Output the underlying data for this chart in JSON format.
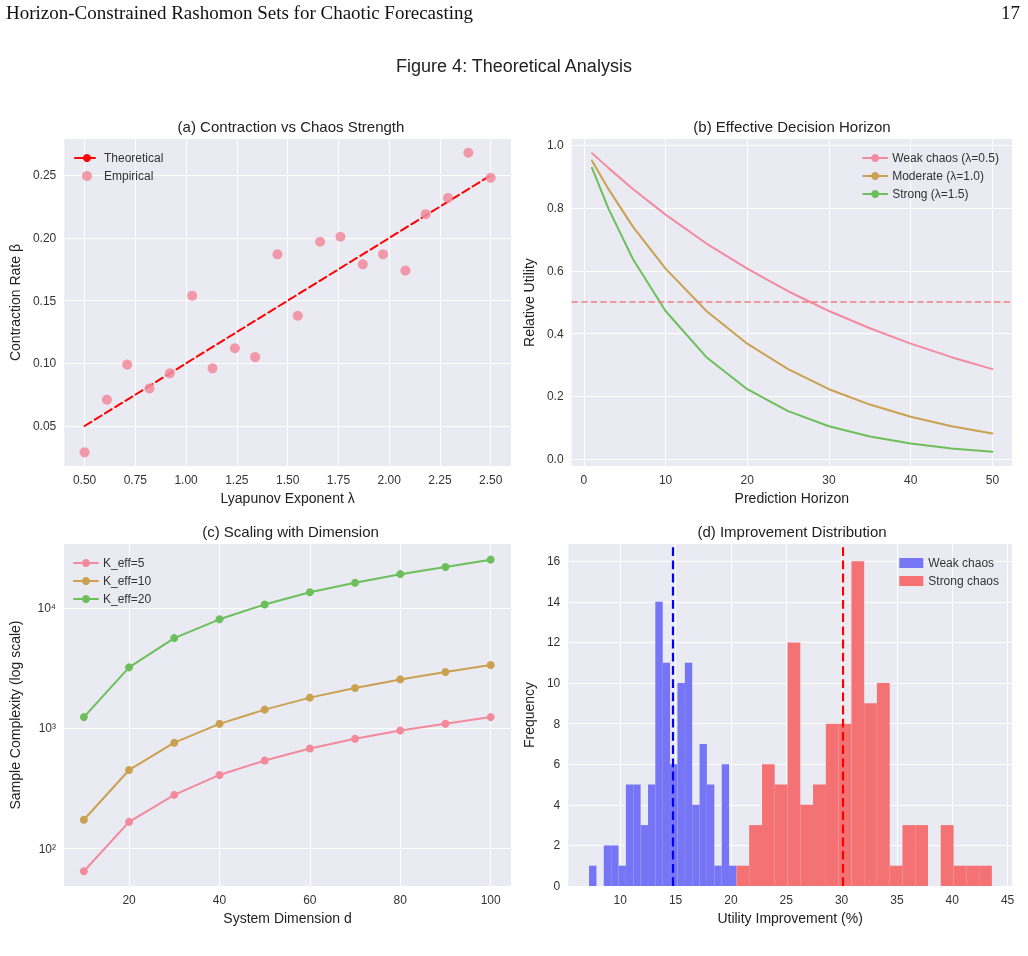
{
  "chart_data": [
    {
      "type": "scatter",
      "title": "(a) Contraction vs Chaos Strength",
      "xlabel": "Lyapunov Exponent λ",
      "ylabel": "Contraction Rate β",
      "annotations": [
        "Horizon-Constrained Rashomon Sets for Chaotic Forecasting",
        "17",
        "Figure 4: Theoretical Analysis"
      ],
      "series": [
        {
          "type": "line",
          "name": "Theoretical",
          "color": "#ff0000",
          "line_style": "dashed",
          "marker": "none",
          "x": [
            0.5,
            2.5
          ],
          "values": [
            0.05,
            0.25
          ]
        },
        {
          "name": "Empirical",
          "color": "#f28a9c",
          "marker": "circle",
          "x": [
            0.5,
            0.61,
            0.71,
            0.82,
            0.92,
            1.03,
            1.13,
            1.24,
            1.34,
            1.45,
            1.55,
            1.66,
            1.76,
            1.87,
            1.97,
            2.08,
            2.18,
            2.29,
            2.39,
            2.5
          ],
          "values": [
            0.029,
            0.071,
            0.099,
            0.08,
            0.092,
            0.154,
            0.096,
            0.112,
            0.105,
            0.187,
            0.138,
            0.197,
            0.201,
            0.179,
            0.187,
            0.174,
            0.219,
            0.232,
            0.268,
            0.248
          ]
        }
      ],
      "xlim": [
        0.4,
        2.6
      ],
      "xticks": [
        {
          "value": 0.5,
          "label": "0.50"
        },
        {
          "value": 0.75,
          "label": "0.75"
        },
        {
          "value": 1,
          "label": "1.00"
        },
        {
          "value": 1.25,
          "label": "1.25"
        },
        {
          "value": 1.5,
          "label": "1.50"
        },
        {
          "value": 1.75,
          "label": "1.75"
        },
        {
          "value": 2,
          "label": "2.00"
        },
        {
          "value": 2.25,
          "label": "2.25"
        },
        {
          "value": 2.5,
          "label": "2.50"
        }
      ],
      "ylim": [
        0.018,
        0.279
      ],
      "yticks": [
        {
          "value": 0.05,
          "label": "0.05"
        },
        {
          "value": 0.1,
          "label": "0.10"
        },
        {
          "value": 0.15,
          "label": "0.15"
        },
        {
          "value": 0.2,
          "label": "0.20"
        },
        {
          "value": 0.25,
          "label": "0.25"
        }
      ],
      "grid": true,
      "legend": "top left"
    },
    {
      "type": "line",
      "title": "(b) Effective Decision Horizon",
      "xlabel": "Prediction Horizon",
      "ylabel": "Relative Utility",
      "marker": "none",
      "x": [
        1,
        3,
        6,
        10,
        15,
        20,
        25,
        30,
        35,
        40,
        45,
        50
      ],
      "series": [
        {
          "name": "Weak chaos (λ=0.5)",
          "color": "#f38aa0",
          "values": [
            0.975,
            0.928,
            0.861,
            0.779,
            0.687,
            0.607,
            0.535,
            0.472,
            0.417,
            0.368,
            0.325,
            0.287
          ]
        },
        {
          "name": "Moderate (λ=1.0)",
          "color": "#c9a150",
          "values": [
            0.951,
            0.861,
            0.741,
            0.607,
            0.472,
            0.368,
            0.287,
            0.223,
            0.174,
            0.135,
            0.105,
            0.082
          ]
        },
        {
          "name": "Strong (λ=1.5)",
          "color": "#6cbf5a",
          "values": [
            0.928,
            0.799,
            0.638,
            0.472,
            0.325,
            0.223,
            0.153,
            0.105,
            0.072,
            0.05,
            0.034,
            0.024
          ]
        }
      ],
      "ref_lines": [
        {
          "axis": "y",
          "value": 0.5,
          "color": "#f08080",
          "line_style": "dashed"
        }
      ],
      "xlim": [
        -1.5,
        52.4
      ],
      "xticks": [
        0,
        10,
        20,
        30,
        40,
        50
      ],
      "ylim": [
        -0.022,
        1.02
      ],
      "yticks": [
        {
          "value": 0,
          "label": "0.0"
        },
        {
          "value": 0.2,
          "label": "0.2"
        },
        {
          "value": 0.4,
          "label": "0.4"
        },
        {
          "value": 0.6,
          "label": "0.6"
        },
        {
          "value": 0.8,
          "label": "0.8"
        },
        {
          "value": 1,
          "label": "1.0"
        }
      ],
      "grid": true,
      "legend": "top right"
    },
    {
      "type": "line",
      "title": "(c) Scaling with Dimension",
      "xlabel": "System Dimension d",
      "ylabel": "Sample Complexity (log scale)",
      "marker": "circle",
      "log": "y",
      "x": [
        10,
        20,
        30,
        40,
        50,
        60,
        70,
        80,
        90,
        100
      ],
      "series": [
        {
          "name": "K_eff=5",
          "color": "#f28a9c",
          "values": [
            65,
            167,
            280,
            410,
            540,
            680,
            820,
            960,
            1090,
            1240
          ]
        },
        {
          "name": "K_eff=10",
          "color": "#c9a150",
          "values": [
            174,
            451,
            760,
            1090,
            1430,
            1800,
            2160,
            2550,
            2940,
            3360
          ]
        },
        {
          "name": "K_eff=20",
          "color": "#6cbf5a",
          "values": [
            1240,
            3210,
            5620,
            8050,
            10700,
            13500,
            16200,
            19100,
            21900,
            25200
          ]
        }
      ],
      "xlim": [
        5.6,
        104.5
      ],
      "xticks": [
        20,
        40,
        60,
        80,
        100
      ],
      "ylim": [
        49,
        34000
      ],
      "yticks": [
        {
          "value": 100,
          "label": "10²"
        },
        {
          "value": 1000,
          "label": "10³"
        },
        {
          "value": 10000,
          "label": "10⁴"
        }
      ],
      "grid": true,
      "legend": "top left"
    },
    {
      "type": "histogram",
      "title": "(d) Improvement Distribution",
      "xlabel": "Utility Improvement (%)",
      "ylabel": "Frequency",
      "series": [
        {
          "name": "Weak chaos",
          "color": "#7575f5",
          "values": [
            1,
            0,
            2,
            2,
            1,
            5,
            5,
            3,
            5,
            14,
            11,
            6,
            10,
            11,
            4,
            7,
            5,
            1,
            6,
            1,
            null,
            null,
            null,
            null,
            null,
            null,
            null,
            null,
            null,
            null,
            null,
            null,
            null,
            null,
            null,
            null,
            null,
            null,
            null,
            null
          ]
        },
        {
          "name": "Strong chaos",
          "color": "#f47274",
          "values": [
            null,
            null,
            null,
            null,
            null,
            null,
            null,
            null,
            null,
            null,
            null,
            null,
            null,
            null,
            null,
            null,
            null,
            null,
            null,
            null,
            1,
            3,
            6,
            5,
            12,
            4,
            5,
            8,
            8,
            16,
            9,
            10,
            1,
            3,
            3,
            0,
            3,
            1,
            1,
            1
          ]
        }
      ],
      "bins": [
        7.18,
        7.85,
        8.51,
        9.18,
        9.84,
        10.51,
        11.18,
        11.84,
        12.51,
        13.17,
        13.84,
        14.5,
        15.17,
        15.84,
        16.5,
        17.17,
        17.83,
        18.5,
        19.17,
        19.83,
        20.5,
        21.65,
        22.81,
        23.96,
        25.12,
        26.27,
        27.42,
        28.58,
        29.73,
        30.89,
        32.04,
        33.19,
        34.35,
        35.5,
        36.66,
        37.81,
        38.96,
        40.12,
        41.27,
        42.43,
        43.58
      ],
      "ref_lines": [
        {
          "axis": "x",
          "value": 14.7,
          "color": "#0000ff",
          "line_style": "dashed"
        },
        {
          "axis": "x",
          "value": 30.1,
          "color": "#ff0000",
          "line_style": "dashed"
        }
      ],
      "xlim": [
        5.3,
        45.4
      ],
      "xticks": [
        10,
        15,
        20,
        25,
        30,
        35,
        40,
        45
      ],
      "ylim": [
        0,
        16.85
      ],
      "yticks": [
        0,
        2,
        4,
        6,
        8,
        10,
        12,
        14,
        16
      ],
      "grid": true,
      "legend": "top right"
    }
  ]
}
